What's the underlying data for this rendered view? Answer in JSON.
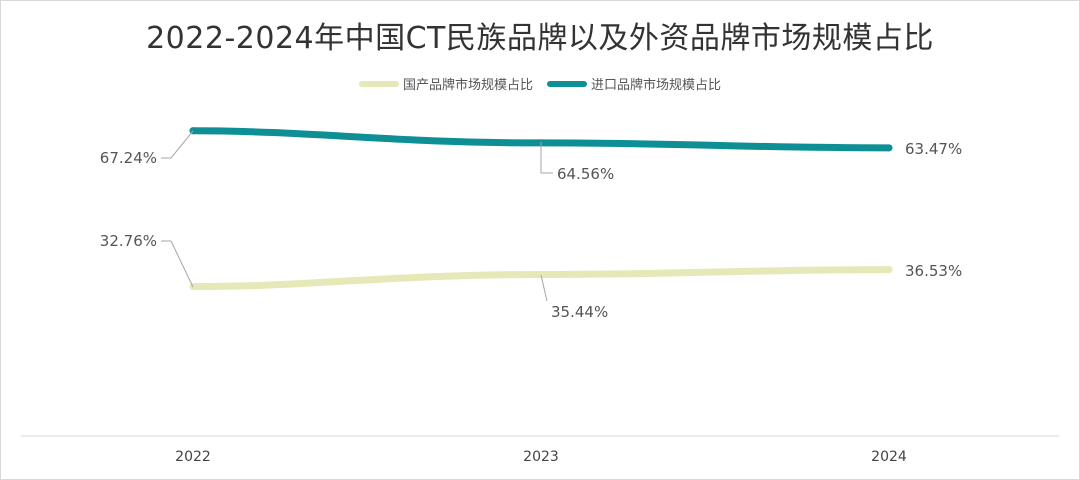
{
  "chart_data": {
    "type": "line",
    "title": "2022-2024年中国CT民族品牌以及外资品牌市场规模占比",
    "categories": [
      "2022",
      "2023",
      "2024"
    ],
    "series": [
      {
        "name": "国产品牌市场规模占比",
        "values": [
          32.76,
          35.44,
          36.53
        ],
        "labels": [
          "32.76%",
          "35.44%",
          "36.53%"
        ],
        "color": "#e6e8b8"
      },
      {
        "name": "进口品牌市场规模占比",
        "values": [
          67.24,
          64.56,
          63.47
        ],
        "labels": [
          "67.24%",
          "64.56%",
          "63.47%"
        ],
        "color": "#0e8f96"
      }
    ],
    "xlabel": "",
    "ylabel": "",
    "grid": false,
    "legend_position": "top-center"
  }
}
